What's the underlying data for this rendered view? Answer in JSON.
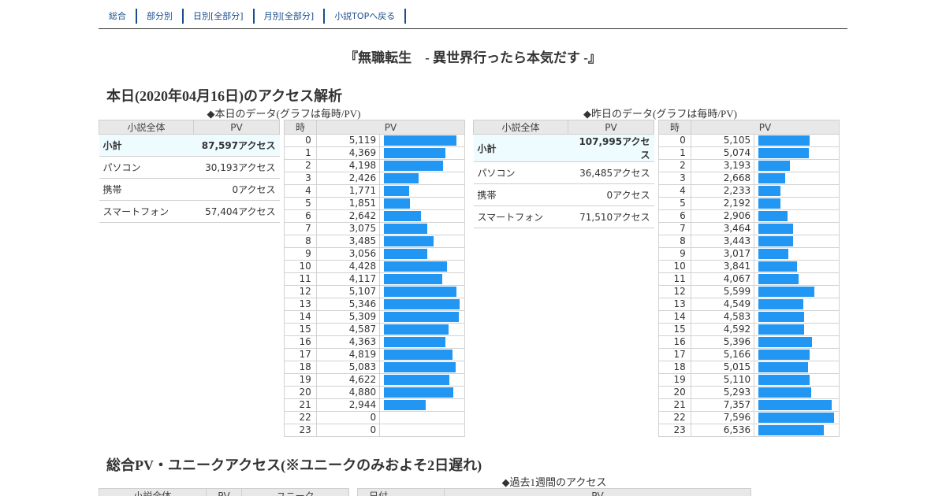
{
  "nav": {
    "items": [
      "総合",
      "部分別",
      "日別[全部分]",
      "月別[全部分]",
      "小説TOPへ戻る"
    ]
  },
  "novel_title": "『無職転生　- 異世界行ったら本気だす -』",
  "today_heading": "本日(2020年04月16日)のアクセス解析",
  "today": {
    "caption": "◆本日のデータ(グラフは毎時/PV)",
    "summary": {
      "col1": "小説全体",
      "col2": "PV",
      "rows": [
        {
          "label": "小計",
          "value": "87,597アクセス"
        },
        {
          "label": "パソコン",
          "value": "30,193アクセス"
        },
        {
          "label": "携帯",
          "value": "0アクセス"
        },
        {
          "label": "スマートフォン",
          "value": "57,404アクセス"
        }
      ]
    },
    "hourly": {
      "col_hour": "時",
      "col_pv": "PV",
      "rows": [
        {
          "hour": "0",
          "pv": "5,119",
          "value": 5119
        },
        {
          "hour": "1",
          "pv": "4,369",
          "value": 4369
        },
        {
          "hour": "2",
          "pv": "4,198",
          "value": 4198
        },
        {
          "hour": "3",
          "pv": "2,426",
          "value": 2426
        },
        {
          "hour": "4",
          "pv": "1,771",
          "value": 1771
        },
        {
          "hour": "5",
          "pv": "1,851",
          "value": 1851
        },
        {
          "hour": "6",
          "pv": "2,642",
          "value": 2642
        },
        {
          "hour": "7",
          "pv": "3,075",
          "value": 3075
        },
        {
          "hour": "8",
          "pv": "3,485",
          "value": 3485
        },
        {
          "hour": "9",
          "pv": "3,056",
          "value": 3056
        },
        {
          "hour": "10",
          "pv": "4,428",
          "value": 4428
        },
        {
          "hour": "11",
          "pv": "4,117",
          "value": 4117
        },
        {
          "hour": "12",
          "pv": "5,107",
          "value": 5107
        },
        {
          "hour": "13",
          "pv": "5,346",
          "value": 5346
        },
        {
          "hour": "14",
          "pv": "5,309",
          "value": 5309
        },
        {
          "hour": "15",
          "pv": "4,587",
          "value": 4587
        },
        {
          "hour": "16",
          "pv": "4,363",
          "value": 4363
        },
        {
          "hour": "17",
          "pv": "4,819",
          "value": 4819
        },
        {
          "hour": "18",
          "pv": "5,083",
          "value": 5083
        },
        {
          "hour": "19",
          "pv": "4,622",
          "value": 4622
        },
        {
          "hour": "20",
          "pv": "4,880",
          "value": 4880
        },
        {
          "hour": "21",
          "pv": "2,944",
          "value": 2944
        },
        {
          "hour": "22",
          "pv": "0",
          "value": 0
        },
        {
          "hour": "23",
          "pv": "0",
          "value": 0
        }
      ]
    }
  },
  "yesterday": {
    "caption": "◆昨日のデータ(グラフは毎時/PV)",
    "summary": {
      "col1": "小説全体",
      "col2": "PV",
      "rows": [
        {
          "label": "小計",
          "value": "107,995アクセス"
        },
        {
          "label": "パソコン",
          "value": "36,485アクセス"
        },
        {
          "label": "携帯",
          "value": "0アクセス"
        },
        {
          "label": "スマートフォン",
          "value": "71,510アクセス"
        }
      ]
    },
    "hourly": {
      "col_hour": "時",
      "col_pv": "PV",
      "rows": [
        {
          "hour": "0",
          "pv": "5,105",
          "value": 5105
        },
        {
          "hour": "1",
          "pv": "5,074",
          "value": 5074
        },
        {
          "hour": "2",
          "pv": "3,193",
          "value": 3193
        },
        {
          "hour": "3",
          "pv": "2,668",
          "value": 2668
        },
        {
          "hour": "4",
          "pv": "2,233",
          "value": 2233
        },
        {
          "hour": "5",
          "pv": "2,192",
          "value": 2192
        },
        {
          "hour": "6",
          "pv": "2,906",
          "value": 2906
        },
        {
          "hour": "7",
          "pv": "3,464",
          "value": 3464
        },
        {
          "hour": "8",
          "pv": "3,443",
          "value": 3443
        },
        {
          "hour": "9",
          "pv": "3,017",
          "value": 3017
        },
        {
          "hour": "10",
          "pv": "3,841",
          "value": 3841
        },
        {
          "hour": "11",
          "pv": "4,067",
          "value": 4067
        },
        {
          "hour": "12",
          "pv": "5,599",
          "value": 5599
        },
        {
          "hour": "13",
          "pv": "4,549",
          "value": 4549
        },
        {
          "hour": "14",
          "pv": "4,583",
          "value": 4583
        },
        {
          "hour": "15",
          "pv": "4,592",
          "value": 4592
        },
        {
          "hour": "16",
          "pv": "5,396",
          "value": 5396
        },
        {
          "hour": "17",
          "pv": "5,166",
          "value": 5166
        },
        {
          "hour": "18",
          "pv": "5,015",
          "value": 5015
        },
        {
          "hour": "19",
          "pv": "5,110",
          "value": 5110
        },
        {
          "hour": "20",
          "pv": "5,293",
          "value": 5293
        },
        {
          "hour": "21",
          "pv": "7,357",
          "value": 7357
        },
        {
          "hour": "22",
          "pv": "7,596",
          "value": 7596
        },
        {
          "hour": "23",
          "pv": "6,536",
          "value": 6536
        }
      ]
    }
  },
  "total_heading": "総合PV・ユニークアクセス(※ユニークのみおよそ2日遅れ)",
  "week_caption": "◆過去1週間のアクセス",
  "total_table": {
    "col1": "小説全体",
    "col2": "PV",
    "col3": "ユニーク"
  },
  "week_table": {
    "col1": "日付",
    "col2": "PV"
  },
  "colors": {
    "bar": "#2196f3",
    "nav_link": "#1a4d8c",
    "header_bg": "#e8e8e8",
    "subtotal_bg": "#eefcff"
  }
}
